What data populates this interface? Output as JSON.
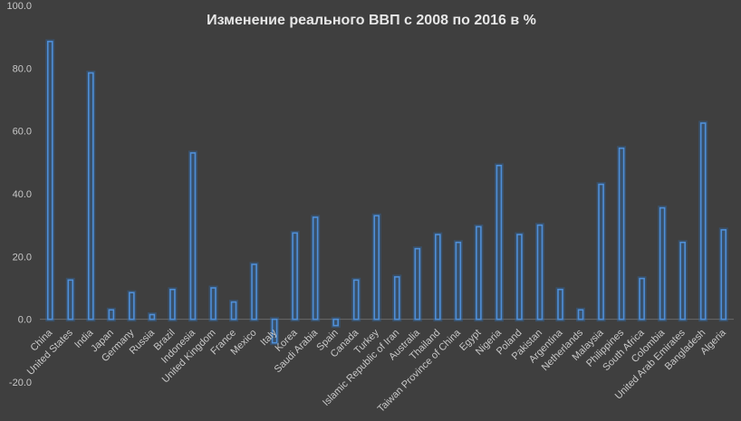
{
  "chart_data": {
    "type": "bar",
    "title": "Изменение реального ВВП с 2008 по 2016 в %",
    "xlabel": "",
    "ylabel": "",
    "ylim": [
      -20,
      100
    ],
    "yticks": [
      "-20.0",
      "0.0",
      "20.0",
      "40.0",
      "60.0",
      "80.0",
      "100.0"
    ],
    "grid": false,
    "legend": "none",
    "bar_color": "#4f8fd8",
    "background": "#3f3f3f",
    "categories": [
      "China",
      "United States",
      "India",
      "Japan",
      "Germany",
      "Russia",
      "Brazil",
      "Indonesia",
      "United Kingdom",
      "France",
      "Mexico",
      "Italy",
      "Korea",
      "Saudi Arabia",
      "Spain",
      "Canada",
      "Turkey",
      "Islamic Republic of Iran",
      "Australia",
      "Thailand",
      "Taiwan Province of China",
      "Egypt",
      "Nigeria",
      "Poland",
      "Pakistan",
      "Argentina",
      "Netherlands",
      "Malaysia",
      "Philippines",
      "South Africa",
      "Colombia",
      "United Arab Emirates",
      "Bangladesh",
      "Algeria"
    ],
    "values": [
      88.5,
      12.5,
      78.5,
      3.0,
      8.5,
      1.5,
      9.5,
      53.0,
      10.0,
      5.5,
      17.5,
      -7.5,
      27.5,
      32.5,
      -2.0,
      12.5,
      33.0,
      13.5,
      22.5,
      27.0,
      24.5,
      29.5,
      49.0,
      27.0,
      30.0,
      9.5,
      3.0,
      43.0,
      54.5,
      13.0,
      35.5,
      24.5,
      62.5,
      28.5
    ]
  }
}
